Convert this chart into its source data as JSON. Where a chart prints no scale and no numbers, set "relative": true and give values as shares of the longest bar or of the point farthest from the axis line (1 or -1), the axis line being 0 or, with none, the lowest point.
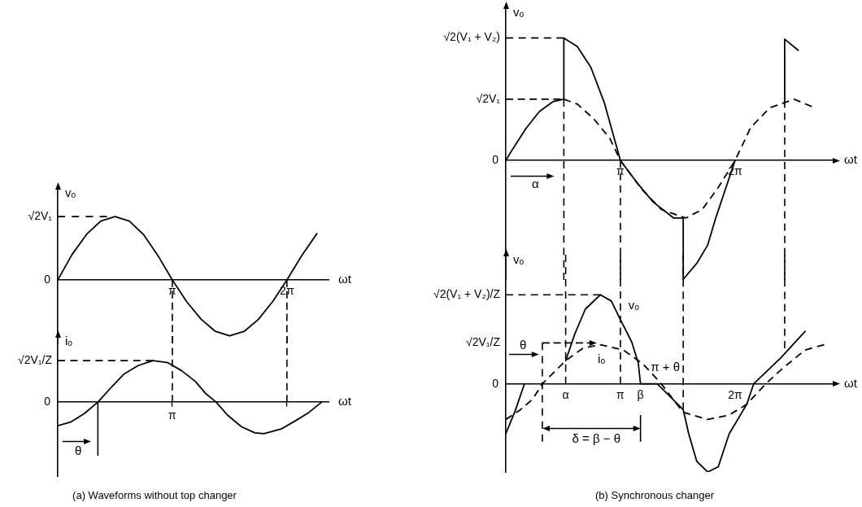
{
  "chart_data": [
    {
      "type": "line",
      "relative": true,
      "xlabel": "ωt",
      "ylabel": "vₒ",
      "xlim": [
        0,
        7.42
      ],
      "xticks": [
        {
          "value": 3.14,
          "label": "π"
        },
        {
          "value": 6.28,
          "label": "2π"
        }
      ],
      "marker": "none",
      "annotations": [
        "0"
      ],
      "ref_lines": [
        {
          "axis": "y",
          "value": 1,
          "label": "√2V₁",
          "color": "#000000",
          "line_style": "dashed"
        },
        {
          "axis": "x",
          "value": 3.14,
          "color": "#000000",
          "line_style": "dashed"
        },
        {
          "axis": "x",
          "value": 6.28,
          "color": "#000000",
          "line_style": "dashed"
        }
      ],
      "series": [
        {
          "color": "#000000",
          "line_style": "solid",
          "x": [
            0,
            0.39,
            0.79,
            1.18,
            1.57,
            1.96,
            2.36,
            2.75,
            3.14,
            3.53,
            3.93,
            4.32,
            4.71,
            5.11,
            5.5,
            5.89,
            6.28,
            6.68,
            7.1
          ],
          "values": [
            0,
            0.4,
            0.72,
            0.93,
            1.0,
            0.93,
            0.71,
            0.38,
            0,
            -0.34,
            -0.62,
            -0.81,
            -0.88,
            -0.81,
            -0.62,
            -0.34,
            0,
            0.38,
            0.73
          ]
        }
      ]
    },
    {
      "type": "line",
      "relative": true,
      "xlabel": "ωt",
      "ylabel": "iₒ",
      "xlim": [
        0,
        7.42
      ],
      "xticks": [
        3.14,
        6.28
      ],
      "tick_labels": false,
      "marker": "none",
      "annotations": [
        "0",
        "π",
        "θ",
        "(a) Waveforms without top changer"
      ],
      "ref_lines": [
        {
          "axis": "y",
          "value": 1,
          "label": "√2V₁/Z",
          "color": "#000000",
          "line_style": "dashed"
        },
        {
          "axis": "x",
          "value": 3.14,
          "color": "#000000",
          "line_style": "dashed"
        },
        {
          "axis": "x",
          "value": 6.28,
          "color": "#000000",
          "line_style": "dashed"
        },
        {
          "axis": "x",
          "value": 1.1,
          "color": "#000000",
          "line_style": "solid"
        }
      ],
      "series": [
        {
          "color": "#000000",
          "line_style": "solid",
          "x": [
            0,
            0.35,
            0.72,
            1.1,
            1.48,
            1.82,
            2.2,
            2.61,
            3.02,
            3.39,
            3.77,
            4.05,
            4.34,
            4.65,
            5.03,
            5.4,
            5.65,
            6.14,
            6.51,
            6.88,
            7.23
          ],
          "values": [
            -0.57,
            -0.48,
            -0.28,
            0,
            0.37,
            0.68,
            0.88,
            1.0,
            0.95,
            0.76,
            0.5,
            0.21,
            0,
            -0.31,
            -0.59,
            -0.74,
            -0.76,
            -0.64,
            -0.45,
            -0.25,
            0
          ]
        }
      ]
    },
    {
      "type": "line",
      "relative": true,
      "xlabel": "ωt",
      "ylabel": "vₒ",
      "xlim": [
        0,
        9.0
      ],
      "xticks": [
        {
          "value": 3.14,
          "label": "π"
        },
        {
          "value": 6.28,
          "label": "2π"
        }
      ],
      "marker": "none",
      "annotations": [
        "0",
        "α"
      ],
      "ref_lines": [
        {
          "axis": "y",
          "value": 1.0,
          "label": "√2(V₁ + V₂)",
          "color": "#000000",
          "line_style": "dashed"
        },
        {
          "axis": "y",
          "value": 0.5,
          "label": "√2V₁",
          "color": "#000000",
          "line_style": "dashed"
        },
        {
          "axis": "x",
          "value": 1.59,
          "color": "#000000",
          "line_style": "dashed"
        },
        {
          "axis": "x",
          "value": 3.14,
          "color": "#000000",
          "line_style": "dashed"
        },
        {
          "axis": "x",
          "value": 7.64,
          "color": "#000000",
          "line_style": "dashed"
        }
      ],
      "series": [
        {
          "color": "#000000",
          "line_style": "solid",
          "x": [
            0,
            0.18,
            0.55,
            0.92,
            1.29,
            1.59,
            1.59,
            1.96,
            2.33,
            2.7,
            3.14,
            3.59,
            4.04,
            4.6,
            4.86,
            4.86,
            5.23,
            5.53,
            5.75,
            6.28,
            6.9,
            7.64,
            7.64,
            8.01
          ],
          "values": [
            0,
            0.09,
            0.26,
            0.4,
            0.48,
            0.5,
            1.0,
            0.93,
            0.76,
            0.47,
            0,
            -0.18,
            -0.34,
            -0.47,
            -0.47,
            -0.97,
            -0.84,
            -0.69,
            -0.47,
            0,
            null,
            0.49,
            0.99,
            0.9
          ]
        },
        {
          "color": "#000000",
          "line_style": "dashed",
          "x": [
            1.59,
            1.96,
            2.41,
            2.85,
            3.14,
            3.74,
            4.26,
            4.93,
            5.38,
            5.82,
            6.28,
            6.71,
            7.23,
            7.9,
            8.38
          ],
          "values": [
            0.5,
            0.46,
            0.34,
            0.18,
            0,
            -0.24,
            -0.4,
            -0.47,
            -0.4,
            -0.22,
            0,
            0.27,
            0.43,
            0.5,
            0.44
          ]
        }
      ]
    },
    {
      "type": "line",
      "relative": true,
      "xlabel": "ωt",
      "ylabel": "vₒ",
      "xlim": [
        0,
        9.0
      ],
      "xticks": [
        {
          "value": 1.64,
          "label": "α"
        },
        {
          "value": 3.14,
          "label": "π"
        },
        {
          "value": 3.69,
          "label": "β"
        },
        {
          "value": 6.28,
          "label": "2π"
        }
      ],
      "marker": "none",
      "annotations": [
        "0",
        "√2V₁/Z",
        "θ",
        "π + θ",
        "δ = β − θ",
        "(b) Synchronous changer"
      ],
      "ref_lines": [
        {
          "axis": "y",
          "value": 1.0,
          "label": "√2(V₁ + V₂)/Z",
          "color": "#000000",
          "line_style": "dashed"
        },
        {
          "axis": "y",
          "value": 0.46,
          "color": "#000000",
          "line_style": "dashed"
        },
        {
          "axis": "x",
          "value": 1.0,
          "color": "#000000",
          "line_style": "dashed"
        },
        {
          "axis": "x",
          "value": 1.64,
          "color": "#000000",
          "line_style": "dashed"
        },
        {
          "axis": "x",
          "value": 3.14,
          "color": "#000000",
          "line_style": "dashed"
        },
        {
          "axis": "x",
          "value": 4.86,
          "color": "#000000",
          "line_style": "dashed"
        },
        {
          "axis": "x",
          "value": 7.64,
          "color": "#000000",
          "line_style": "dashed"
        },
        {
          "axis": "x",
          "value": 3.69,
          "color": "#000000",
          "line_style": "solid"
        }
      ],
      "series": [
        {
          "name": "vₒ",
          "color": "#000000",
          "line_style": "solid",
          "x": [
            0,
            0.25,
            0.51,
            0.8,
            1.64,
            1.89,
            2.18,
            2.59,
            2.89,
            3.14,
            3.45,
            3.63,
            3.69,
            4.15,
            4.86,
            5.01,
            5.23,
            5.53,
            5.82,
            6.12,
            6.6,
            6.79,
            7.53,
            8.2
          ],
          "values": [
            -0.56,
            -0.31,
            0,
            null,
            0.26,
            0.56,
            0.84,
            1.0,
            0.93,
            0.72,
            0.47,
            0.23,
            0,
            0,
            -0.29,
            -0.56,
            -0.87,
            -0.99,
            -0.93,
            -0.56,
            -0.23,
            0,
            0.29,
            0.59
          ]
        },
        {
          "name": "iₒ",
          "color": "#000000",
          "line_style": "dashed",
          "x": [
            0,
            0.4,
            0.74,
            1.0,
            1.64,
            2.11,
            2.59,
            3.22,
            3.74,
            4.15,
            4.26,
            4.86,
            5.53,
            6.12,
            6.6,
            7.12,
            7.6,
            8.2,
            8.72
          ],
          "values": [
            -0.4,
            -0.29,
            -0.17,
            0,
            0.26,
            0.4,
            0.44,
            0.38,
            0.23,
            0.05,
            0,
            -0.32,
            -0.4,
            -0.35,
            -0.23,
            0,
            0.18,
            0.38,
            0.44
          ]
        }
      ]
    }
  ]
}
